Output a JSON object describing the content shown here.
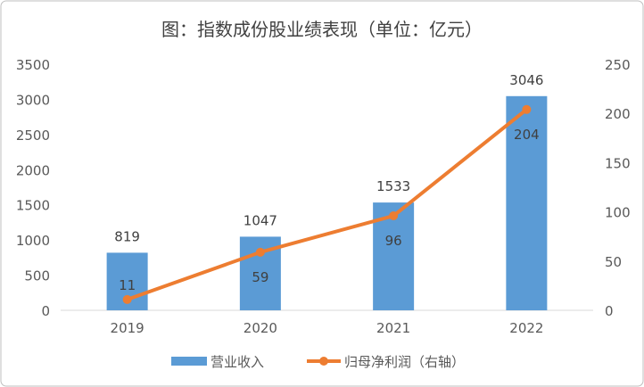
{
  "chart_data": {
    "type": "bar+line",
    "title": "图：指数成份股业绩表现（单位：亿元）",
    "categories": [
      "2019",
      "2020",
      "2021",
      "2022"
    ],
    "series": [
      {
        "name": "营业收入",
        "type": "bar",
        "axis": "left",
        "color": "#5B9BD5",
        "values": [
          819,
          1047,
          1533,
          3046
        ]
      },
      {
        "name": "归母净利润（右轴）",
        "type": "line",
        "axis": "right",
        "color": "#ED7D31",
        "values": [
          11,
          59,
          96,
          204
        ]
      }
    ],
    "ylim_left": [
      0,
      3500
    ],
    "yticks_left": [
      0,
      500,
      1000,
      1500,
      2000,
      2500,
      3000,
      3500
    ],
    "ylim_right": [
      0,
      250
    ],
    "yticks_right": [
      0,
      50,
      100,
      150,
      200,
      250
    ],
    "grid": false,
    "legend_position": "bottom"
  }
}
